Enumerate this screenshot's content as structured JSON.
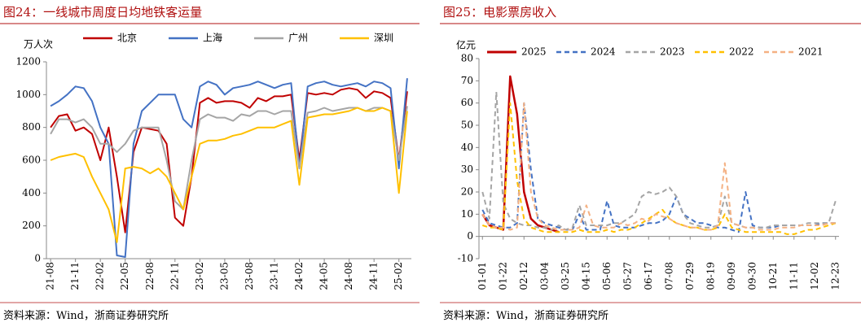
{
  "chart_data": [
    {
      "type": "line",
      "title": "图24：一线城市周度日均地铁客运量",
      "y_label": "万人次",
      "source": "资料来源：Wind，浙商证券研究所",
      "categories": [
        "21-08",
        null,
        null,
        "21-11",
        null,
        null,
        "22-02",
        null,
        null,
        "22-05",
        null,
        null,
        "22-08",
        null,
        null,
        "22-11",
        null,
        null,
        "23-02",
        null,
        null,
        "23-05",
        null,
        null,
        "23-08",
        null,
        null,
        "23-11",
        null,
        null,
        "24-02",
        null,
        null,
        "24-05",
        null,
        null,
        "24-08",
        null,
        null,
        "24-11",
        null,
        null,
        "25-02",
        null
      ],
      "ylim": [
        0,
        1200
      ],
      "yticks": [
        0,
        200,
        400,
        600,
        800,
        1000,
        1200
      ],
      "series": [
        {
          "name": "北京",
          "color": "#c00000",
          "values": [
            800,
            870,
            880,
            780,
            800,
            760,
            600,
            800,
            500,
            160,
            650,
            800,
            790,
            780,
            700,
            250,
            200,
            500,
            950,
            980,
            950,
            960,
            960,
            950,
            920,
            980,
            960,
            990,
            990,
            1000,
            600,
            1010,
            1000,
            1010,
            1000,
            1030,
            1040,
            1030,
            980,
            1020,
            1010,
            980,
            600,
            1020
          ]
        },
        {
          "name": "上海",
          "color": "#4472c4",
          "values": [
            930,
            960,
            1000,
            1050,
            1040,
            960,
            800,
            700,
            20,
            10,
            700,
            900,
            950,
            1000,
            1000,
            1000,
            850,
            800,
            1050,
            1080,
            1060,
            1000,
            1040,
            1050,
            1060,
            1080,
            1060,
            1040,
            1060,
            1070,
            550,
            1050,
            1070,
            1080,
            1060,
            1050,
            1060,
            1070,
            1050,
            1080,
            1070,
            1040,
            550,
            1100
          ]
        },
        {
          "name": "广州",
          "color": "#a5a5a5",
          "values": [
            760,
            850,
            850,
            830,
            850,
            800,
            700,
            700,
            650,
            700,
            780,
            800,
            800,
            800,
            600,
            350,
            300,
            600,
            850,
            880,
            860,
            860,
            840,
            880,
            870,
            900,
            900,
            880,
            900,
            900,
            550,
            890,
            900,
            920,
            900,
            910,
            920,
            920,
            900,
            920,
            920,
            900,
            600,
            930
          ]
        },
        {
          "name": "深圳",
          "color": "#ffc000",
          "values": [
            600,
            620,
            630,
            640,
            620,
            500,
            400,
            300,
            100,
            550,
            560,
            550,
            520,
            550,
            500,
            400,
            300,
            500,
            700,
            720,
            720,
            730,
            750,
            760,
            780,
            800,
            800,
            800,
            820,
            840,
            450,
            860,
            870,
            880,
            880,
            890,
            900,
            920,
            900,
            900,
            920,
            900,
            400,
            900
          ]
        }
      ]
    },
    {
      "type": "line",
      "title": "图25：电影票房收入",
      "y_label": "亿元",
      "source": "资料来源：Wind，浙商证券研究所",
      "categories": [
        "01-01",
        null,
        null,
        "01-22",
        null,
        null,
        "02-12",
        null,
        null,
        "03-04",
        null,
        null,
        "03-25",
        null,
        null,
        "04-15",
        null,
        null,
        "05-06",
        null,
        null,
        "05-27",
        null,
        null,
        "06-17",
        null,
        null,
        "07-08",
        null,
        null,
        "07-29",
        null,
        null,
        "08-19",
        null,
        null,
        "09-09",
        null,
        null,
        "09-30",
        null,
        null,
        "10-21",
        null,
        null,
        "11-11",
        null,
        null,
        "12-02",
        null,
        null,
        "12-23"
      ],
      "ylim": [
        -10,
        80
      ],
      "yticks": [
        -10,
        0,
        10,
        20,
        30,
        40,
        50,
        60,
        70,
        80
      ],
      "series": [
        {
          "name": "2025",
          "color": "#c00000",
          "dashed": false,
          "values": [
            10,
            5,
            4,
            3,
            72,
            55,
            20,
            8,
            5,
            4,
            3,
            2,
            null,
            null,
            null,
            null,
            null,
            null,
            null,
            null,
            null,
            null,
            null,
            null,
            null,
            null,
            null,
            null,
            null,
            null,
            null,
            null,
            null,
            null,
            null,
            null,
            null,
            null,
            null,
            null,
            null,
            null,
            null,
            null,
            null,
            null,
            null,
            null,
            null,
            null,
            null,
            null
          ]
        },
        {
          "name": "2024",
          "color": "#4472c4",
          "dashed": true,
          "values": [
            12,
            6,
            5,
            4,
            4,
            6,
            60,
            30,
            8,
            6,
            5,
            4,
            3,
            3,
            10,
            3,
            3,
            3,
            16,
            5,
            4,
            4,
            4,
            5,
            6,
            6,
            7,
            10,
            18,
            10,
            8,
            6,
            6,
            5,
            4,
            4,
            3,
            2,
            20,
            5,
            4,
            4,
            4,
            5,
            5,
            5,
            5,
            5,
            5,
            6,
            6,
            6
          ]
        },
        {
          "name": "2023",
          "color": "#a5a5a5",
          "dashed": true,
          "values": [
            20,
            8,
            65,
            15,
            8,
            6,
            5,
            5,
            4,
            4,
            3,
            5,
            3,
            4,
            14,
            5,
            5,
            5,
            5,
            6,
            6,
            8,
            10,
            18,
            20,
            19,
            20,
            22,
            18,
            10,
            6,
            5,
            4,
            4,
            5,
            18,
            6,
            5,
            4,
            4,
            4,
            4,
            5,
            5,
            5,
            5,
            5,
            6,
            6,
            6,
            6,
            16
          ]
        },
        {
          "name": "2022",
          "color": "#ffc000",
          "dashed": true,
          "values": [
            5,
            4,
            4,
            3,
            60,
            25,
            8,
            4,
            3,
            2,
            2,
            2,
            2,
            2,
            3,
            2,
            2,
            2,
            3,
            2,
            3,
            3,
            4,
            6,
            8,
            10,
            12,
            8,
            6,
            5,
            4,
            4,
            3,
            3,
            4,
            10,
            4,
            3,
            2,
            2,
            2,
            2,
            2,
            2,
            1,
            1,
            2,
            3,
            3,
            4,
            5,
            6
          ]
        },
        {
          "name": "2021",
          "color": "#f4b183",
          "dashed": true,
          "values": [
            10,
            5,
            4,
            4,
            3,
            4,
            60,
            20,
            8,
            5,
            4,
            3,
            3,
            3,
            4,
            14,
            5,
            4,
            4,
            4,
            6,
            5,
            6,
            8,
            7,
            10,
            9,
            8,
            6,
            5,
            4,
            4,
            3,
            3,
            5,
            33,
            6,
            5,
            4,
            4,
            3,
            3,
            3,
            4,
            4,
            4,
            5,
            5,
            5,
            5,
            6,
            6
          ]
        }
      ]
    }
  ]
}
